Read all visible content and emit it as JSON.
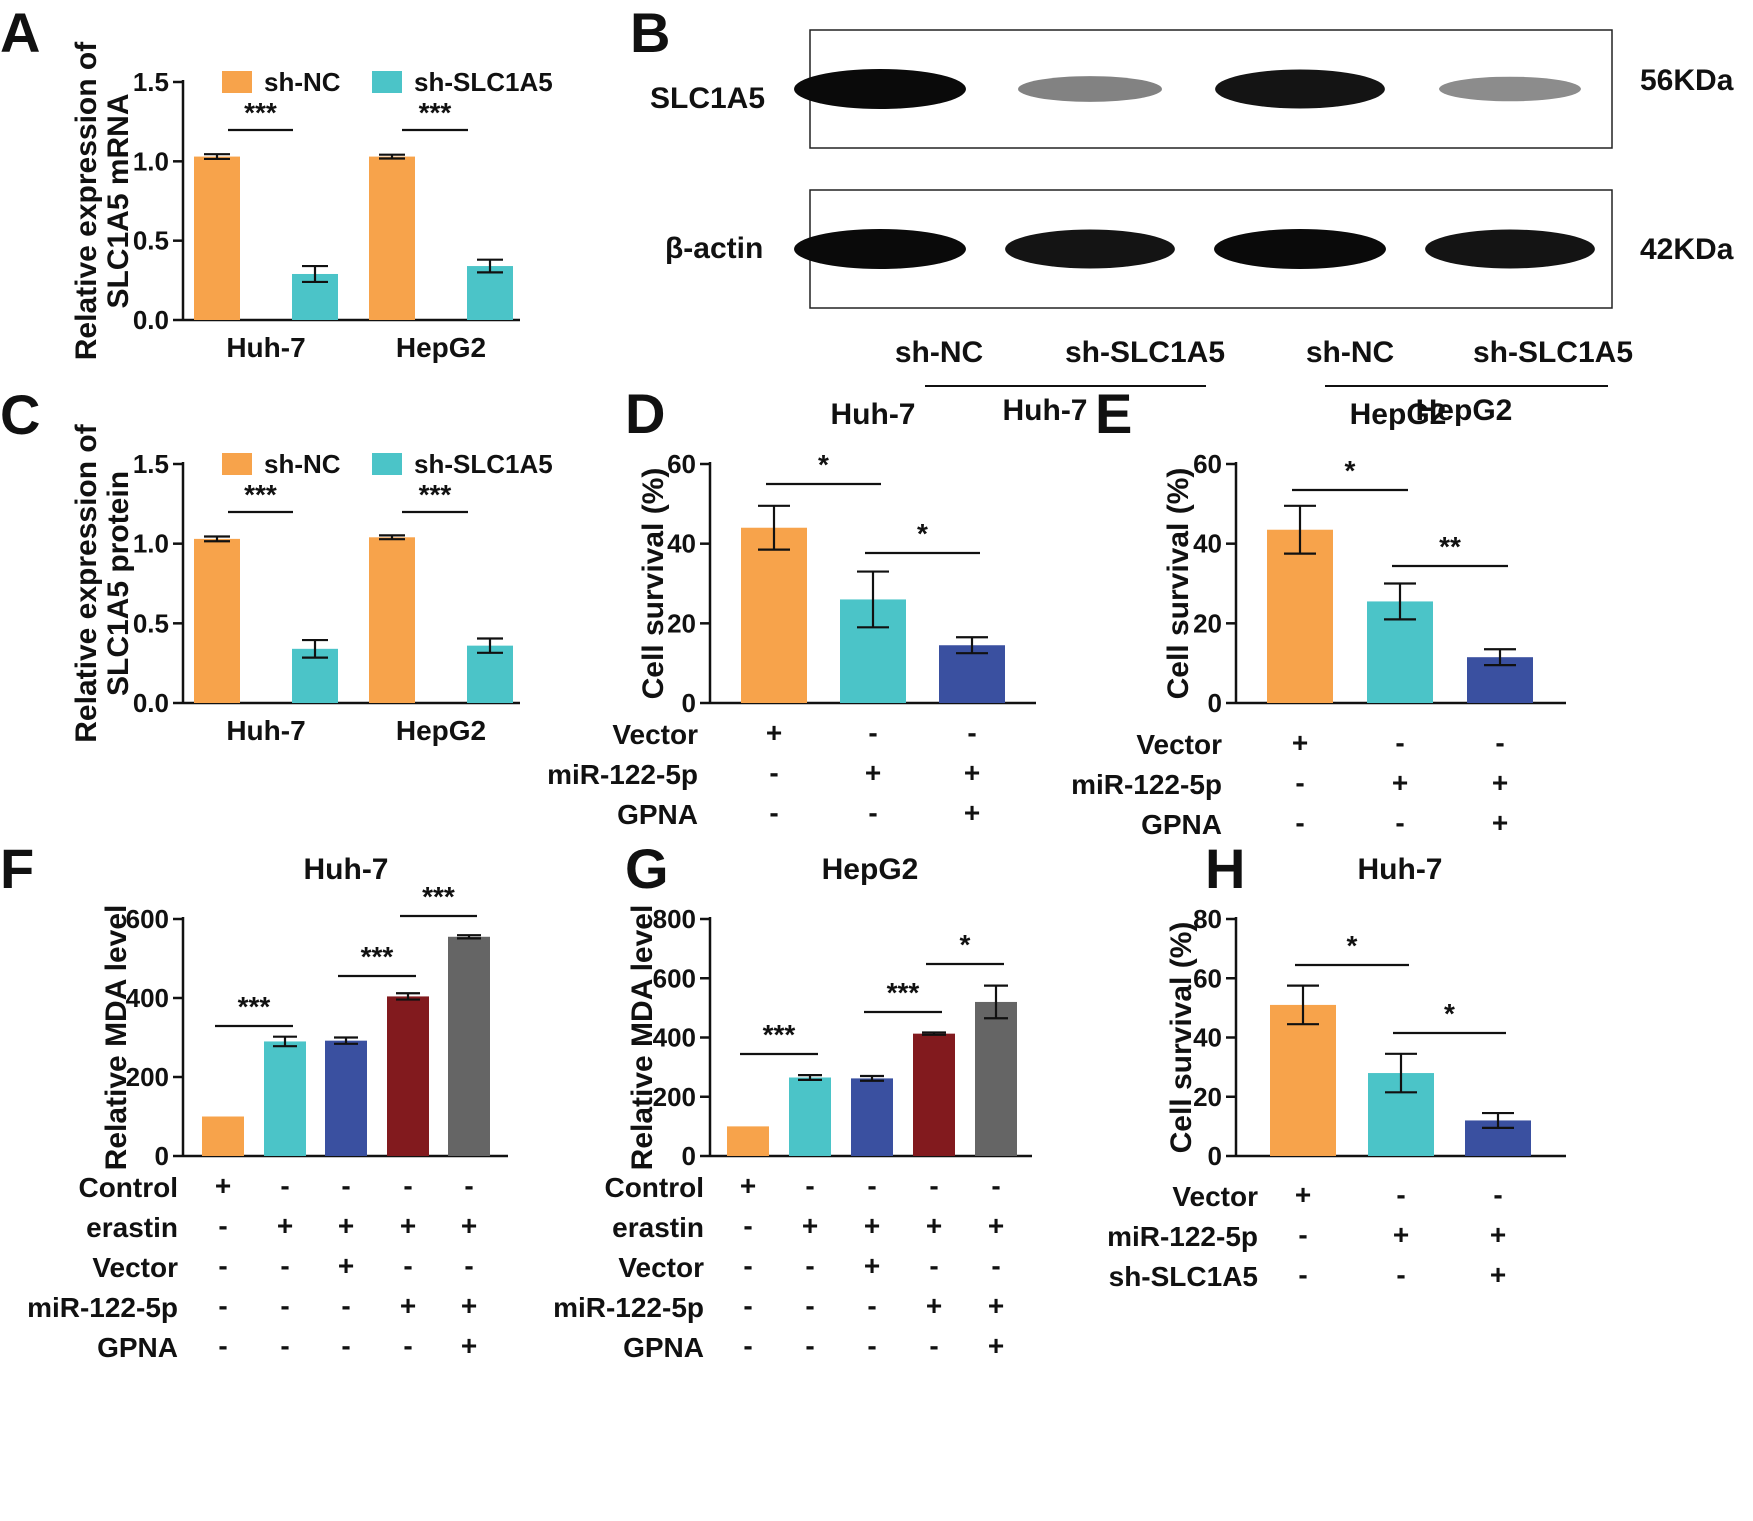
{
  "figure": {
    "colors": {
      "orange": "#F7A34B",
      "teal": "#4BC4C8",
      "blue": "#3A50A0",
      "darkred": "#821A1E",
      "gray": "#656565",
      "blot_band": "#0a0a0a"
    }
  },
  "panels": [
    {
      "id": "A",
      "letter": "A",
      "chart_data": {
        "type": "bar",
        "title": "",
        "ylabel_lines": [
          "Relative expression of",
          "SLC1A5 mRNA"
        ],
        "ylim": [
          0,
          1.5
        ],
        "yticks": [
          "0.0",
          "0.5",
          "1.0",
          "1.5"
        ],
        "categories": [
          "Huh-7",
          "HepG2"
        ],
        "series": [
          {
            "name": "sh-NC",
            "color": "orange",
            "values": [
              1.03,
              1.03
            ],
            "errors": [
              0.015,
              0.012
            ]
          },
          {
            "name": "sh-SLC1A5",
            "color": "teal",
            "values": [
              0.29,
              0.34
            ],
            "errors": [
              0.05,
              0.04
            ]
          }
        ],
        "significance": [
          "***",
          "***"
        ]
      }
    },
    {
      "id": "C",
      "letter": "C",
      "chart_data": {
        "type": "bar",
        "title": "",
        "ylabel_lines": [
          "Relative expression of",
          "SLC1A5 protein"
        ],
        "ylim": [
          0,
          1.5
        ],
        "yticks": [
          "0.0",
          "0.5",
          "1.0",
          "1.5"
        ],
        "categories": [
          "Huh-7",
          "HepG2"
        ],
        "series": [
          {
            "name": "sh-NC",
            "color": "orange",
            "values": [
              1.03,
              1.04
            ],
            "errors": [
              0.015,
              0.012
            ]
          },
          {
            "name": "sh-SLC1A5",
            "color": "teal",
            "values": [
              0.34,
              0.36
            ],
            "errors": [
              0.055,
              0.045
            ]
          }
        ],
        "significance": [
          "***",
          "***"
        ]
      }
    },
    {
      "id": "D",
      "letter": "D",
      "chart_data": {
        "type": "bar",
        "title": "Huh-7",
        "ylabel_lines": [
          "Cell survival (%)"
        ],
        "ylim": [
          0,
          60
        ],
        "yticks": [
          "0",
          "20",
          "40",
          "60"
        ],
        "bars": [
          {
            "value": 44,
            "error": 5.5,
            "color": "orange"
          },
          {
            "value": 26,
            "error": 7,
            "color": "teal"
          },
          {
            "value": 14.5,
            "error": 2,
            "color": "blue"
          }
        ],
        "significance": [
          {
            "from": 0,
            "to": 1,
            "label": "*"
          },
          {
            "from": 1,
            "to": 2,
            "label": "*"
          }
        ],
        "conditions": [
          {
            "label": "Vector",
            "signs": [
              "+",
              "-",
              "-"
            ]
          },
          {
            "label": "miR-122-5p",
            "signs": [
              "-",
              "+",
              "+"
            ]
          },
          {
            "label": "GPNA",
            "signs": [
              "-",
              "-",
              "+"
            ]
          }
        ]
      }
    },
    {
      "id": "E",
      "letter": "E",
      "chart_data": {
        "type": "bar",
        "title": "HepG2",
        "ylabel_lines": [
          "Cell survival (%)"
        ],
        "ylim": [
          0,
          60
        ],
        "yticks": [
          "0",
          "20",
          "40",
          "60"
        ],
        "bars": [
          {
            "value": 43.5,
            "error": 6,
            "color": "orange"
          },
          {
            "value": 25.5,
            "error": 4.5,
            "color": "teal"
          },
          {
            "value": 11.5,
            "error": 2,
            "color": "blue"
          }
        ],
        "significance": [
          {
            "from": 0,
            "to": 1,
            "label": "*"
          },
          {
            "from": 1,
            "to": 2,
            "label": "**"
          }
        ],
        "conditions": [
          {
            "label": "Vector",
            "signs": [
              "+",
              "-",
              "-"
            ]
          },
          {
            "label": "miR-122-5p",
            "signs": [
              "-",
              "+",
              "+"
            ]
          },
          {
            "label": "GPNA",
            "signs": [
              "-",
              "-",
              "+"
            ]
          }
        ]
      }
    },
    {
      "id": "F",
      "letter": "F",
      "chart_data": {
        "type": "bar",
        "title": "Huh-7",
        "ylabel_lines": [
          "Relative MDA level"
        ],
        "ylim": [
          0,
          600
        ],
        "yticks": [
          "0",
          "200",
          "400",
          "600"
        ],
        "bars": [
          {
            "value": 100,
            "error": 0,
            "color": "orange"
          },
          {
            "value": 290,
            "error": 12,
            "color": "teal"
          },
          {
            "value": 292,
            "error": 8,
            "color": "blue"
          },
          {
            "value": 404,
            "error": 8,
            "color": "darkred"
          },
          {
            "value": 555,
            "error": 4,
            "color": "gray"
          }
        ],
        "significance": [
          {
            "from": 0,
            "to": 1,
            "label": "***"
          },
          {
            "from": 2,
            "to": 3,
            "label": "***"
          },
          {
            "from": 3,
            "to": 4,
            "label": "***"
          }
        ],
        "conditions": [
          {
            "label": "Control",
            "signs": [
              "+",
              "-",
              "-",
              "-",
              "-"
            ]
          },
          {
            "label": "erastin",
            "signs": [
              "-",
              "+",
              "+",
              "+",
              "+"
            ]
          },
          {
            "label": "Vector",
            "signs": [
              "-",
              "-",
              "+",
              "-",
              "-"
            ]
          },
          {
            "label": "miR-122-5p",
            "signs": [
              "-",
              "-",
              "-",
              "+",
              "+"
            ]
          },
          {
            "label": "GPNA",
            "signs": [
              "-",
              "-",
              "-",
              "-",
              "+"
            ]
          }
        ]
      }
    },
    {
      "id": "G",
      "letter": "G",
      "chart_data": {
        "type": "bar",
        "title": "HepG2",
        "ylabel_lines": [
          "Relative MDA level"
        ],
        "ylim": [
          0,
          800
        ],
        "yticks": [
          "0",
          "200",
          "400",
          "600",
          "800"
        ],
        "bars": [
          {
            "value": 100,
            "error": 0,
            "color": "orange"
          },
          {
            "value": 265,
            "error": 8,
            "color": "teal"
          },
          {
            "value": 262,
            "error": 8,
            "color": "blue"
          },
          {
            "value": 413,
            "error": 4,
            "color": "darkred"
          },
          {
            "value": 520,
            "error": 55,
            "color": "gray"
          }
        ],
        "significance": [
          {
            "from": 0,
            "to": 1,
            "label": "***"
          },
          {
            "from": 2,
            "to": 3,
            "label": "***"
          },
          {
            "from": 3,
            "to": 4,
            "label": "*"
          }
        ],
        "conditions": [
          {
            "label": "Control",
            "signs": [
              "+",
              "-",
              "-",
              "-",
              "-"
            ]
          },
          {
            "label": "erastin",
            "signs": [
              "-",
              "+",
              "+",
              "+",
              "+"
            ]
          },
          {
            "label": "Vector",
            "signs": [
              "-",
              "-",
              "+",
              "-",
              "-"
            ]
          },
          {
            "label": "miR-122-5p",
            "signs": [
              "-",
              "-",
              "-",
              "+",
              "+"
            ]
          },
          {
            "label": "GPNA",
            "signs": [
              "-",
              "-",
              "-",
              "-",
              "+"
            ]
          }
        ]
      }
    },
    {
      "id": "H",
      "letter": "H",
      "chart_data": {
        "type": "bar",
        "title": "Huh-7",
        "ylabel_lines": [
          "Cell survival (%)"
        ],
        "ylim": [
          0,
          80
        ],
        "yticks": [
          "0",
          "20",
          "40",
          "60",
          "80"
        ],
        "bars": [
          {
            "value": 51,
            "error": 6.5,
            "color": "orange"
          },
          {
            "value": 28,
            "error": 6.5,
            "color": "teal"
          },
          {
            "value": 12,
            "error": 2.5,
            "color": "blue"
          }
        ],
        "significance": [
          {
            "from": 0,
            "to": 1,
            "label": "*"
          },
          {
            "from": 1,
            "to": 2,
            "label": "*"
          }
        ],
        "conditions": [
          {
            "label": "Vector",
            "signs": [
              "+",
              "-",
              "-"
            ]
          },
          {
            "label": "miR-122-5p",
            "signs": [
              "-",
              "+",
              "+"
            ]
          },
          {
            "label": "sh-SLC1A5",
            "signs": [
              "-",
              "-",
              "+"
            ]
          }
        ]
      }
    }
  ],
  "blot": {
    "letter": "B",
    "rows": [
      {
        "label": "SLC1A5",
        "size": "56KDa",
        "intensities": [
          1.0,
          0.35,
          0.95,
          0.3
        ]
      },
      {
        "label": "β-actin",
        "size": "42KDa",
        "intensities": [
          1.0,
          0.95,
          1.0,
          0.95
        ]
      }
    ],
    "lanes": [
      "sh-NC",
      "sh-SLC1A5",
      "sh-NC",
      "sh-SLC1A5"
    ],
    "groups": [
      "Huh-7",
      "HepG2"
    ]
  }
}
